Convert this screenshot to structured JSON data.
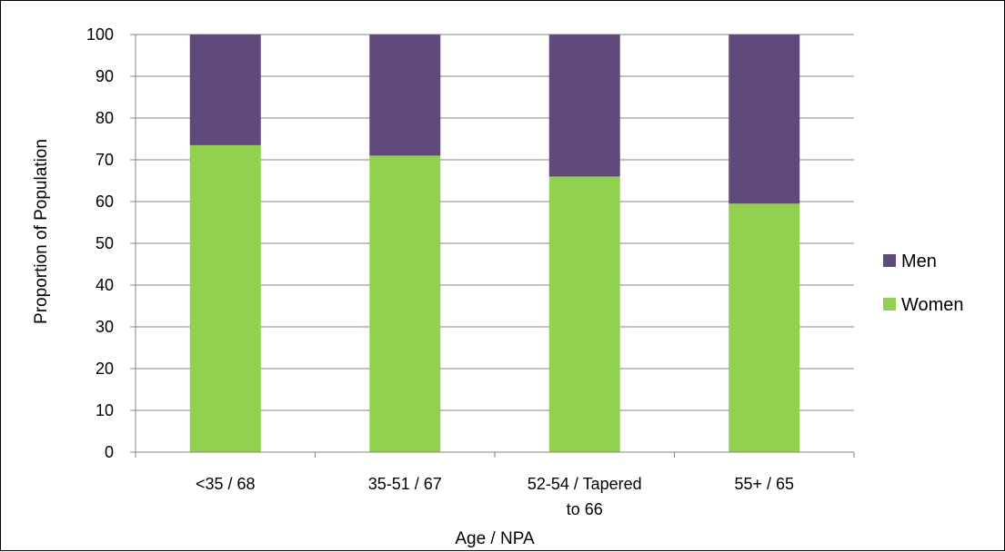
{
  "chart_data": {
    "type": "bar",
    "stacked": true,
    "categories": [
      "<35 / 68",
      "35-51 / 67",
      "52-54 / Tapered to 66",
      "55+ / 65"
    ],
    "category_lines": [
      [
        "<35 / 68"
      ],
      [
        "35-51 / 67"
      ],
      [
        "52-54 / Tapered",
        "to 66"
      ],
      [
        "55+ / 65"
      ]
    ],
    "series": [
      {
        "name": "Women",
        "values": [
          73.5,
          71,
          66,
          59.5
        ],
        "color": "#92d050"
      },
      {
        "name": "Men",
        "values": [
          26.5,
          29,
          34,
          40.5
        ],
        "color": "#604a7b"
      }
    ],
    "xlabel": "Age / NPA",
    "ylabel": "Proportion of Population",
    "ylim": [
      0,
      100
    ],
    "yticks": [
      0,
      10,
      20,
      30,
      40,
      50,
      60,
      70,
      80,
      90,
      100
    ],
    "grid": true,
    "gridline_color": "#868686",
    "legend_position": "right",
    "legend_order": [
      "Men",
      "Women"
    ]
  }
}
